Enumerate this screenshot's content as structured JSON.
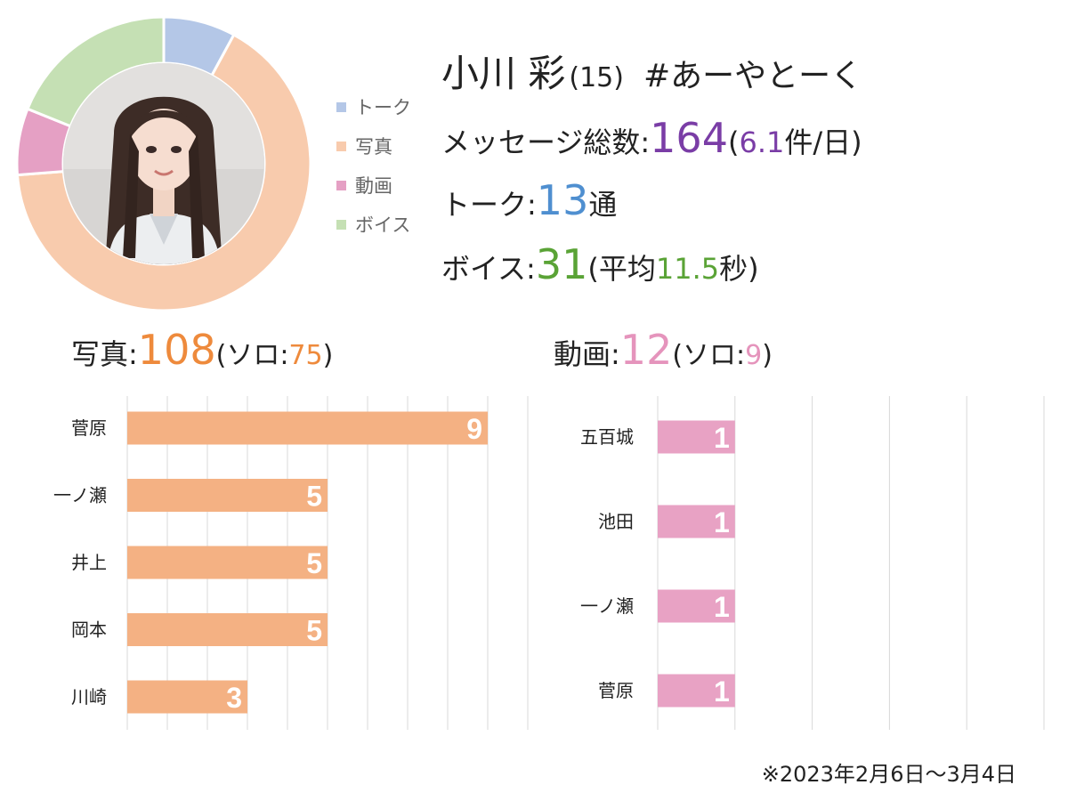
{
  "profile": {
    "name": "小川 彩",
    "age": "(15)",
    "hashtag": "#あーやとーく",
    "photo": "portrait-photo"
  },
  "stats": {
    "messages_label": "メッセージ総数:",
    "messages_value": "164",
    "messages_paren_open": "(",
    "messages_per_day": "6.1",
    "messages_unit": "件/日)",
    "talk_label": "トーク:",
    "talk_value": "13",
    "talk_unit": "通",
    "voice_label": "ボイス:",
    "voice_value": "31",
    "voice_paren_open": "(平均",
    "voice_avg": "11.5",
    "voice_unit": "秒)"
  },
  "photo_section": {
    "label": "写真:",
    "value": "108",
    "solo_open": "(ソロ:",
    "solo_value": "75",
    "solo_close": ")"
  },
  "video_section": {
    "label": "動画:",
    "value": "12",
    "solo_open": "(ソロ:",
    "solo_value": "9",
    "solo_close": ")"
  },
  "footnote": "※2023年2月6日〜3月4日",
  "colors": {
    "talk": "#b4c7e7",
    "photo": "#f8cbad",
    "video": "#e5a0c4",
    "voice": "#c5e0b4",
    "photo_bar": "#f4b183",
    "video_bar": "#e8a2c4",
    "grid": "#d9d9d9"
  },
  "chart_data": [
    {
      "type": "pie",
      "subtype": "donut",
      "categories": [
        "トーク",
        "写真",
        "動画",
        "ボイス"
      ],
      "values": [
        13,
        108,
        12,
        31
      ],
      "legend_position": "right"
    },
    {
      "type": "bar",
      "orientation": "horizontal",
      "categories": [
        "菅原",
        "一ノ瀬",
        "井上",
        "岡本",
        "川崎"
      ],
      "values": [
        9,
        5,
        5,
        5,
        3
      ],
      "xlim": [
        0,
        10
      ],
      "grid": true
    },
    {
      "type": "bar",
      "orientation": "horizontal",
      "categories": [
        "五百城",
        "池田",
        "一ノ瀬",
        "菅原"
      ],
      "values": [
        1,
        1,
        1,
        1
      ],
      "xlim": [
        0,
        5
      ],
      "grid": true
    }
  ]
}
